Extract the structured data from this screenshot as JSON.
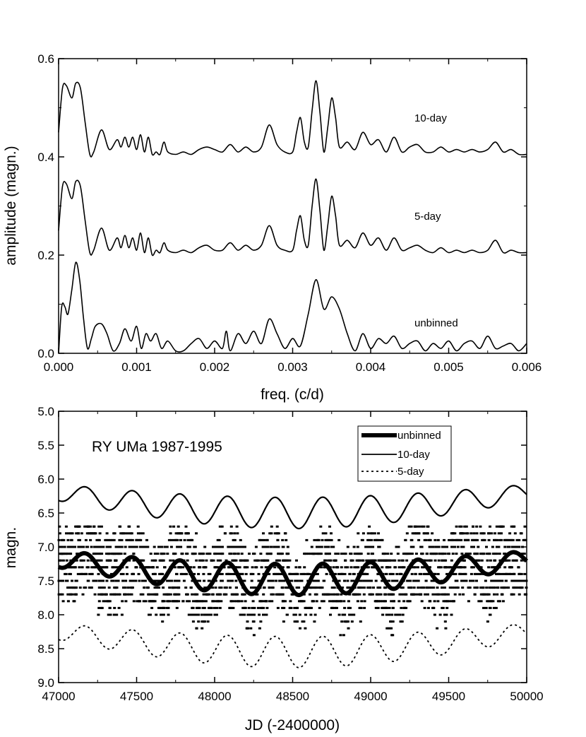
{
  "chart_data": [
    {
      "type": "line",
      "title": "",
      "xlabel": "freq. (c/d)",
      "ylabel": "amplitude (magn.)",
      "xlim": [
        0.0,
        0.006
      ],
      "ylim": [
        0.0,
        0.6
      ],
      "xticks": [
        "0.000",
        "0.001",
        "0.002",
        "0.003",
        "0.004",
        "0.005",
        "0.006"
      ],
      "yticks": [
        "0.0",
        "0.2",
        "0.4",
        "0.6"
      ],
      "curve_labels": {
        "tenday": "10-day",
        "fiveday": "5-day",
        "unbinned": "unbinned"
      },
      "series": [
        {
          "name": "10-day",
          "offset": 0.4,
          "x": [
            0.0,
            5e-05,
            0.0001,
            0.00017,
            0.00022,
            0.00028,
            0.00034,
            0.0004,
            0.00045,
            0.00055,
            0.00065,
            0.00075,
            0.0008,
            0.00085,
            0.0009,
            0.00095,
            0.001,
            0.00105,
            0.0011,
            0.00115,
            0.0012,
            0.00125,
            0.0013,
            0.00135,
            0.0014,
            0.0015,
            0.0016,
            0.0017,
            0.0018,
            0.0019,
            0.002,
            0.0021,
            0.0022,
            0.0023,
            0.0024,
            0.0025,
            0.0026,
            0.0027,
            0.0028,
            0.0029,
            0.003,
            0.00305,
            0.0031,
            0.00315,
            0.0032,
            0.00325,
            0.0033,
            0.00335,
            0.0034,
            0.00345,
            0.0035,
            0.00355,
            0.0036,
            0.0037,
            0.0038,
            0.0039,
            0.004,
            0.0041,
            0.0042,
            0.0043,
            0.0044,
            0.0045,
            0.0046,
            0.0047,
            0.0048,
            0.0049,
            0.005,
            0.0051,
            0.0052,
            0.0053,
            0.0054,
            0.0055,
            0.0056,
            0.0057,
            0.0058,
            0.0059,
            0.006
          ],
          "values": [
            0.45,
            0.54,
            0.545,
            0.52,
            0.55,
            0.54,
            0.47,
            0.405,
            0.41,
            0.455,
            0.415,
            0.435,
            0.42,
            0.44,
            0.42,
            0.44,
            0.415,
            0.445,
            0.41,
            0.44,
            0.405,
            0.41,
            0.405,
            0.43,
            0.41,
            0.405,
            0.41,
            0.405,
            0.415,
            0.42,
            0.415,
            0.41,
            0.425,
            0.41,
            0.42,
            0.41,
            0.42,
            0.465,
            0.425,
            0.41,
            0.41,
            0.45,
            0.48,
            0.43,
            0.42,
            0.495,
            0.555,
            0.49,
            0.41,
            0.46,
            0.52,
            0.48,
            0.42,
            0.43,
            0.415,
            0.45,
            0.425,
            0.435,
            0.41,
            0.44,
            0.41,
            0.42,
            0.425,
            0.41,
            0.41,
            0.42,
            0.41,
            0.415,
            0.41,
            0.415,
            0.41,
            0.415,
            0.43,
            0.41,
            0.415,
            0.405,
            0.405
          ]
        },
        {
          "name": "5-day",
          "offset": 0.2,
          "x": [
            0.0,
            5e-05,
            0.0001,
            0.00017,
            0.00022,
            0.00028,
            0.00034,
            0.0004,
            0.00045,
            0.00055,
            0.00065,
            0.00075,
            0.0008,
            0.00085,
            0.0009,
            0.00095,
            0.001,
            0.00105,
            0.0011,
            0.00115,
            0.0012,
            0.00125,
            0.0013,
            0.00135,
            0.0014,
            0.0015,
            0.0016,
            0.0017,
            0.0018,
            0.0019,
            0.002,
            0.0021,
            0.0022,
            0.0023,
            0.0024,
            0.0025,
            0.0026,
            0.0027,
            0.0028,
            0.0029,
            0.003,
            0.00305,
            0.0031,
            0.00315,
            0.0032,
            0.00325,
            0.0033,
            0.00335,
            0.0034,
            0.00345,
            0.0035,
            0.00355,
            0.0036,
            0.0037,
            0.0038,
            0.0039,
            0.004,
            0.0041,
            0.0042,
            0.0043,
            0.0044,
            0.0045,
            0.0046,
            0.0047,
            0.0048,
            0.0049,
            0.005,
            0.0051,
            0.0052,
            0.0053,
            0.0054,
            0.0055,
            0.0056,
            0.0057,
            0.0058,
            0.0059,
            0.006
          ],
          "values": [
            0.25,
            0.34,
            0.345,
            0.315,
            0.35,
            0.34,
            0.27,
            0.205,
            0.21,
            0.255,
            0.21,
            0.235,
            0.215,
            0.24,
            0.215,
            0.235,
            0.21,
            0.245,
            0.205,
            0.235,
            0.2,
            0.21,
            0.205,
            0.225,
            0.21,
            0.205,
            0.21,
            0.205,
            0.215,
            0.22,
            0.21,
            0.21,
            0.225,
            0.21,
            0.22,
            0.21,
            0.22,
            0.26,
            0.22,
            0.21,
            0.21,
            0.25,
            0.28,
            0.23,
            0.22,
            0.3,
            0.355,
            0.29,
            0.21,
            0.26,
            0.32,
            0.28,
            0.22,
            0.23,
            0.215,
            0.245,
            0.22,
            0.235,
            0.21,
            0.235,
            0.21,
            0.215,
            0.22,
            0.21,
            0.205,
            0.215,
            0.205,
            0.21,
            0.205,
            0.21,
            0.205,
            0.21,
            0.23,
            0.205,
            0.21,
            0.205,
            0.205
          ]
        },
        {
          "name": "unbinned",
          "offset": 0.0,
          "x": [
            0.0,
            4e-05,
            8e-05,
            0.00012,
            0.00017,
            0.00022,
            0.00027,
            0.00032,
            0.00037,
            0.00042,
            0.00047,
            0.00055,
            0.00062,
            0.0007,
            0.00078,
            0.00085,
            0.00093,
            0.001,
            0.00106,
            0.00112,
            0.00118,
            0.00125,
            0.00132,
            0.0014,
            0.0015,
            0.0016,
            0.0017,
            0.0018,
            0.0019,
            0.002,
            0.0021,
            0.00215,
            0.0022,
            0.0023,
            0.0024,
            0.0025,
            0.0026,
            0.0027,
            0.0028,
            0.0029,
            0.003,
            0.0031,
            0.0032,
            0.0033,
            0.0034,
            0.0035,
            0.0036,
            0.0037,
            0.0038,
            0.0039,
            0.004,
            0.0041,
            0.0042,
            0.0043,
            0.0044,
            0.0045,
            0.0046,
            0.0047,
            0.0048,
            0.0049,
            0.005,
            0.0051,
            0.0052,
            0.0053,
            0.0054,
            0.0055,
            0.0056,
            0.0057,
            0.0058,
            0.0059,
            0.006
          ],
          "values": [
            0.0,
            0.095,
            0.095,
            0.08,
            0.13,
            0.185,
            0.15,
            0.07,
            0.01,
            0.03,
            0.055,
            0.06,
            0.04,
            0.005,
            0.02,
            0.05,
            0.025,
            0.055,
            0.01,
            0.04,
            0.025,
            0.04,
            0.01,
            0.025,
            0.005,
            0.005,
            0.02,
            0.03,
            0.01,
            0.025,
            0.01,
            0.045,
            0.005,
            0.04,
            0.02,
            0.045,
            0.02,
            0.07,
            0.04,
            0.01,
            0.03,
            0.015,
            0.08,
            0.15,
            0.09,
            0.115,
            0.09,
            0.04,
            0.005,
            0.04,
            0.01,
            0.03,
            0.02,
            0.035,
            0.01,
            0.02,
            0.025,
            0.005,
            0.02,
            0.01,
            0.025,
            0.005,
            0.02,
            0.025,
            0.01,
            0.035,
            0.01,
            0.015,
            0.02,
            0.005,
            0.02
          ]
        }
      ]
    },
    {
      "type": "scatter",
      "title": "RY UMa 1987-1995",
      "xlabel": "JD (-2400000)",
      "ylabel": "magn.",
      "xlim": [
        47000,
        50000
      ],
      "ylim": [
        9.0,
        5.0
      ],
      "y_inverted": true,
      "xticks": [
        "47000",
        "47500",
        "48000",
        "48500",
        "49000",
        "49500",
        "50000"
      ],
      "yticks": [
        "5.0",
        "5.5",
        "6.0",
        "6.5",
        "7.0",
        "7.5",
        "8.0",
        "8.5",
        "9.0"
      ],
      "legend": [
        "unbinned",
        "10-day",
        "5-day"
      ],
      "legend_position": "top-right",
      "series": [
        {
          "name": "10-day",
          "style": "solid",
          "model": {
            "base": 6.2,
            "trend_amplitude": 0.3,
            "period": 305,
            "phase": 0.2
          },
          "x_range": [
            47000,
            50000
          ]
        },
        {
          "name": "unbinned",
          "style": "thick",
          "model": {
            "base": 7.18,
            "trend_amplitude": 0.3,
            "period": 305,
            "phase": 0.2
          },
          "x_range": [
            47000,
            50000
          ],
          "scatter_dots": {
            "count": 2400,
            "magnitude_range": [
              6.7,
              8.3
            ],
            "step_magnitude": 0.1
          }
        },
        {
          "name": "5-day",
          "style": "dotted",
          "model": {
            "base": 8.25,
            "trend_amplitude": 0.3,
            "period": 305,
            "phase": 0.2
          },
          "x_range": [
            47000,
            50000
          ]
        }
      ]
    }
  ]
}
